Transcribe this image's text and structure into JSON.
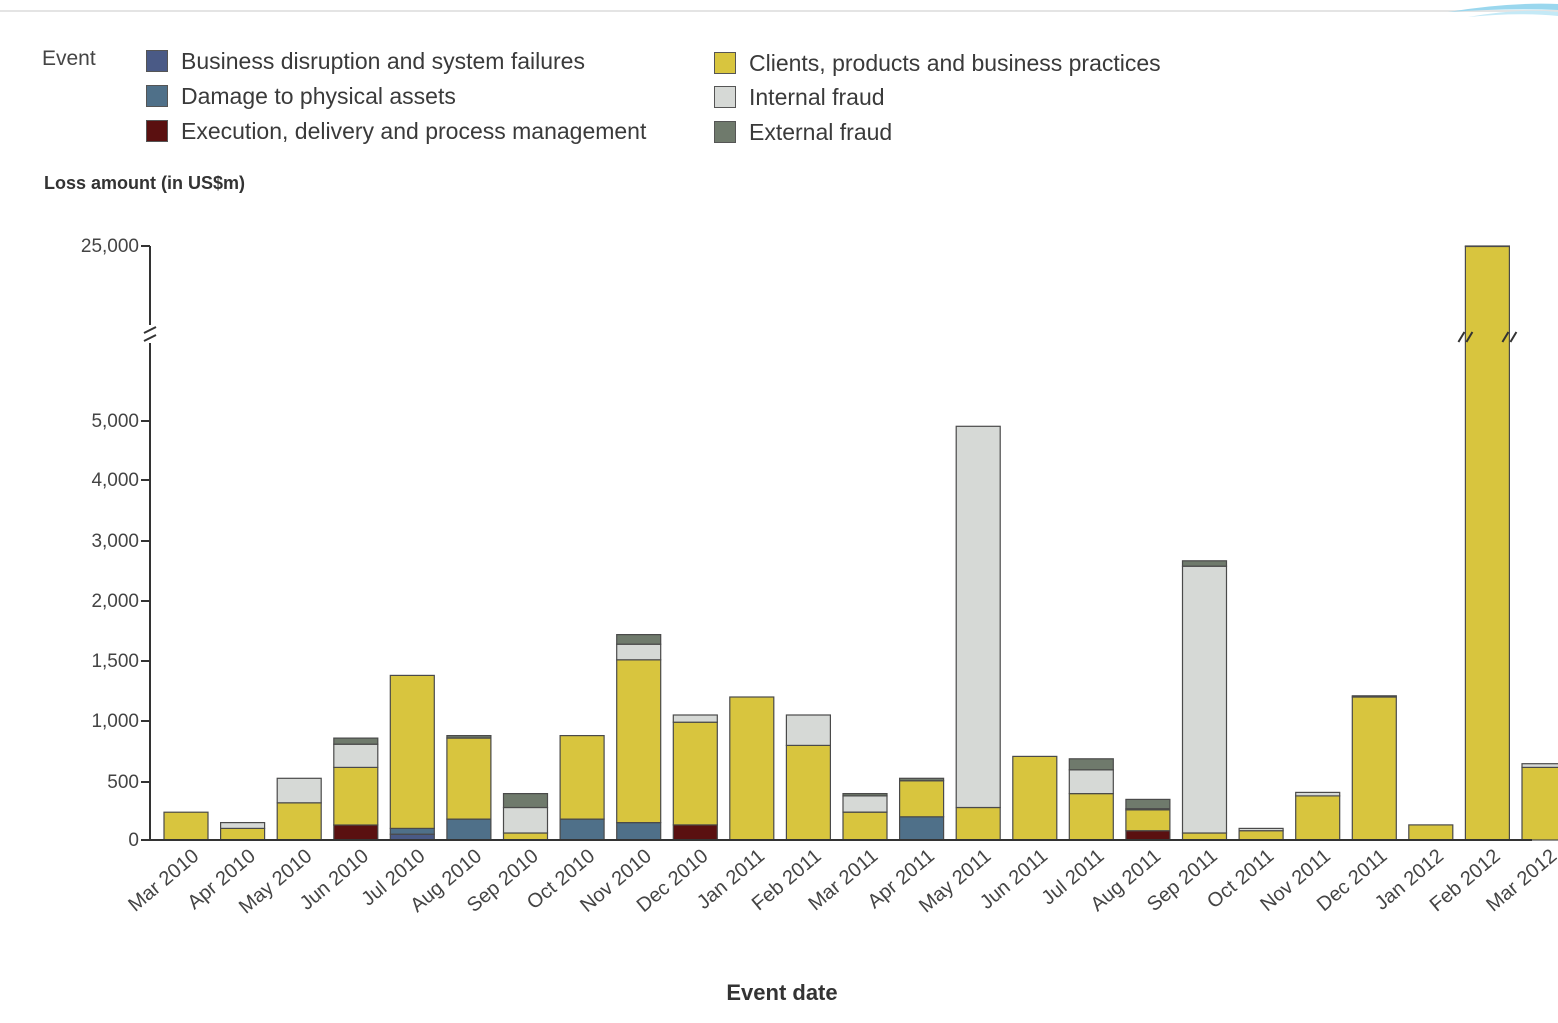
{
  "legend": {
    "title": "Event",
    "items": [
      {
        "label": "Business disruption and system failures",
        "color": "#4a5a86"
      },
      {
        "label": "Damage to physical assets",
        "color": "#4f7089"
      },
      {
        "label": "Execution, delivery and process management",
        "color": "#5a1010"
      },
      {
        "label": "Clients, products and business practices",
        "color": "#d8c53e"
      },
      {
        "label": "Internal fraud",
        "color": "#d6d9d6"
      },
      {
        "label": "External fraud",
        "color": "#6f7a6c"
      }
    ]
  },
  "chart_data": {
    "type": "bar",
    "stacked": true,
    "title": "",
    "xlabel": "Event date",
    "ylabel": "Loss amount (in US$m)",
    "ylim": [
      0,
      25000
    ],
    "y_axis_break": [
      5000,
      25000
    ],
    "y_ticks": [
      0,
      500,
      1000,
      1500,
      2000,
      3000,
      4000,
      5000,
      25000
    ],
    "y_tick_labels": [
      "0",
      "500",
      "1,000",
      "1,500",
      "2,000",
      "3,000",
      "4,000",
      "5,000",
      "25,000"
    ],
    "categories": [
      "Mar 2010",
      "Apr 2010",
      "May 2010",
      "Jun 2010",
      "Jul 2010",
      "Aug 2010",
      "Sep 2010",
      "Oct 2010",
      "Nov 2010",
      "Dec 2010",
      "Jan 2011",
      "Feb 2011",
      "Mar 2011",
      "Apr 2011",
      "May 2011",
      "Jun 2011",
      "Jul 2011",
      "Aug 2011",
      "Sep 2011",
      "Oct 2011",
      "Nov 2011",
      "Dec 2011",
      "Jan 2012",
      "Feb 2012",
      "Mar 2012"
    ],
    "series": [
      {
        "name": "Business disruption and system failures",
        "color": "#4a5a86",
        "values": [
          0,
          0,
          0,
          0,
          50,
          0,
          0,
          0,
          0,
          0,
          0,
          0,
          0,
          0,
          0,
          0,
          0,
          0,
          0,
          0,
          0,
          0,
          0,
          0,
          0
        ]
      },
      {
        "name": "Damage to physical assets",
        "color": "#4f7089",
        "values": [
          0,
          0,
          0,
          0,
          50,
          180,
          0,
          180,
          150,
          0,
          0,
          0,
          0,
          200,
          0,
          0,
          0,
          0,
          0,
          0,
          0,
          0,
          0,
          0,
          0
        ]
      },
      {
        "name": "Execution, delivery and process management",
        "color": "#5a1010",
        "values": [
          0,
          0,
          0,
          130,
          0,
          0,
          0,
          0,
          0,
          130,
          0,
          0,
          0,
          0,
          0,
          0,
          0,
          80,
          0,
          0,
          0,
          0,
          0,
          0,
          0
        ]
      },
      {
        "name": "Clients, products and business practices",
        "color": "#d8c53e",
        "values": [
          240,
          100,
          320,
          490,
          1280,
          680,
          60,
          700,
          1360,
          860,
          1200,
          800,
          240,
          310,
          280,
          710,
          400,
          180,
          60,
          80,
          380,
          1200,
          130,
          24950,
          620
        ]
      },
      {
        "name": "Internal fraud",
        "color": "#d6d9d6",
        "values": [
          0,
          50,
          210,
          190,
          0,
          0,
          220,
          0,
          130,
          60,
          0,
          250,
          140,
          0,
          4630,
          0,
          200,
          10,
          2520,
          20,
          30,
          10,
          0,
          50,
          30
        ]
      },
      {
        "name": "External fraud",
        "color": "#6f7a6c",
        "values": [
          0,
          0,
          0,
          50,
          0,
          20,
          120,
          0,
          80,
          0,
          0,
          0,
          20,
          20,
          0,
          0,
          90,
          80,
          90,
          0,
          0,
          0,
          0,
          0,
          0
        ]
      }
    ],
    "grid": false,
    "legend_position": "top-left"
  }
}
